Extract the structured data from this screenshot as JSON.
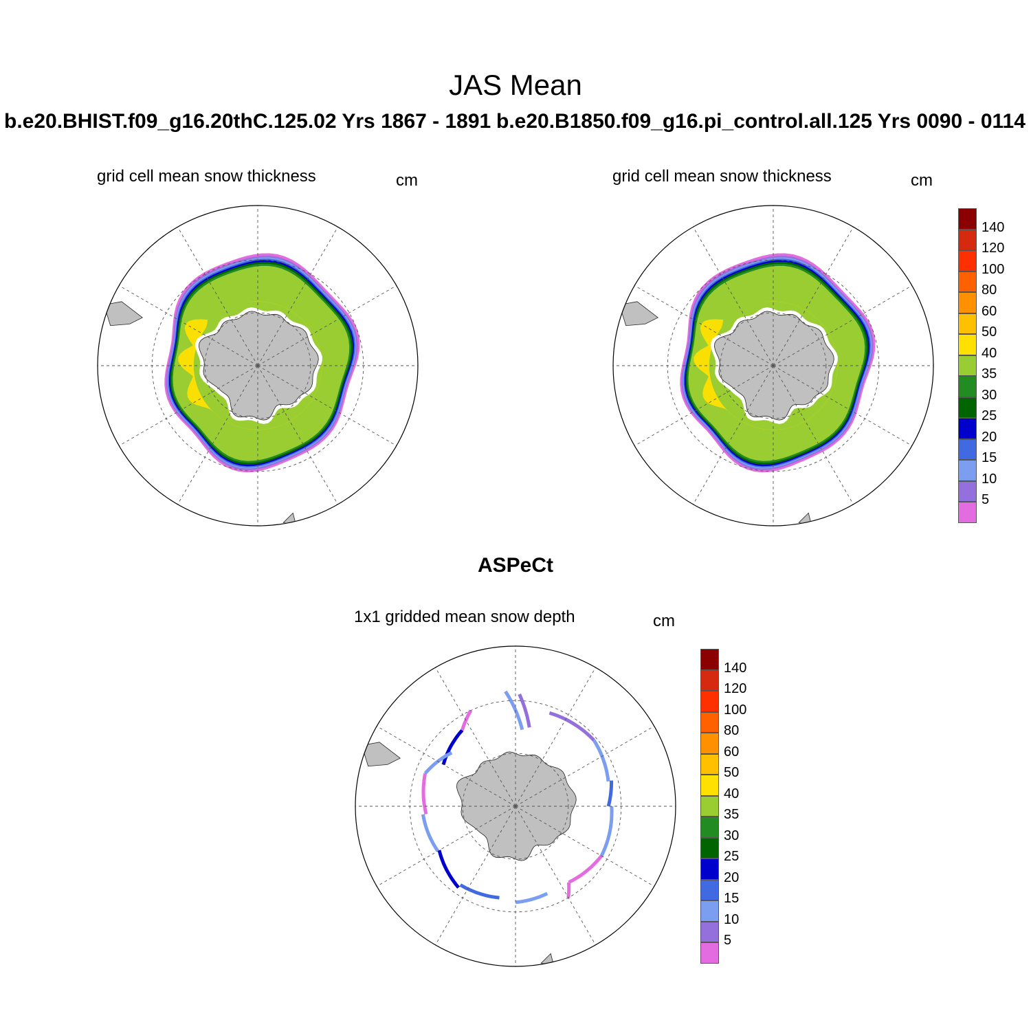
{
  "title": "JAS Mean",
  "panels": {
    "left": {
      "case_title": "b.e20.BHIST.f09_g16.20thC.125.02  Yrs 1867 - 1891",
      "variable": "grid cell mean snow thickness",
      "units": "cm"
    },
    "right": {
      "case_title": "b.e20.B1850.f09_g16.pi_control.all.125  Yrs 0090 - 0114",
      "variable": "grid cell mean snow thickness",
      "units": "cm"
    },
    "obs": {
      "title": "ASPeCt",
      "variable": "1x1 gridded mean snow depth",
      "units": "cm"
    }
  },
  "colorbar": {
    "tick_labels": [
      "5",
      "10",
      "15",
      "20",
      "25",
      "30",
      "35",
      "40",
      "50",
      "60",
      "80",
      "100",
      "120",
      "140"
    ],
    "colors": [
      "#e36ce0",
      "#9370db",
      "#7b9ef0",
      "#4169e1",
      "#0000cd",
      "#006400",
      "#228b22",
      "#9acd32",
      "#ffe000",
      "#ffc000",
      "#ff9000",
      "#ff6000",
      "#ff3000",
      "#d62a10",
      "#8b0000"
    ]
  },
  "map": {
    "projection": "south-polar-stereographic",
    "land_color": "#c0c0c0",
    "graticule": "dashed"
  }
}
